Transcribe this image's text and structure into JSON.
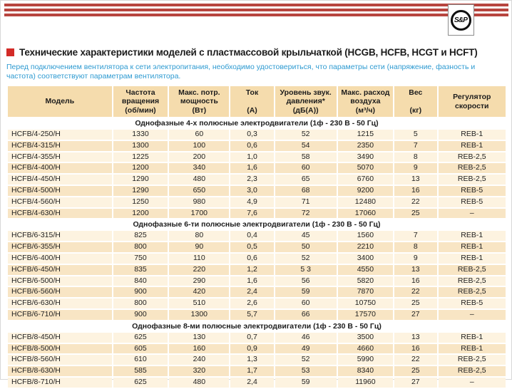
{
  "logo": {
    "text": "S&P"
  },
  "title": {
    "text": "Технические характеристики моделей с пластмассовой крыльчаткой (HCGB, HCFB, HCGT и HCFT)"
  },
  "intro": {
    "text": "Перед подключением вентилятора к сети электропитания, необходимо удостовериться, что параметры сети (напряжение, фазность и частота) соответствуют параметрам вентилятора."
  },
  "colors": {
    "stripe_red": "#b8453f",
    "bullet_red": "#d32b27",
    "intro_blue": "#2d9ad1",
    "header_bg": "#f5dcad",
    "row_light": "#fdf3e0",
    "row_dark": "#f8e5c4"
  },
  "table": {
    "columns": [
      {
        "lines": [
          "Модель"
        ]
      },
      {
        "lines": [
          "Частота",
          "вращения",
          "(об/мин)"
        ]
      },
      {
        "lines": [
          "Макс. потр.",
          "мощность",
          "(Вт)"
        ]
      },
      {
        "lines": [
          "Ток",
          "",
          "(А)"
        ]
      },
      {
        "lines": [
          "Уровень звук.",
          "давления*",
          "(дБ(А))"
        ]
      },
      {
        "lines": [
          "Макс. расход",
          "воздуха",
          "(м³/ч)"
        ]
      },
      {
        "lines": [
          "Вес",
          "",
          "(кг)"
        ]
      },
      {
        "lines": [
          "Регулятор",
          "скорости"
        ]
      }
    ],
    "sections": [
      {
        "header": "Однофазные 4-х полюсные электродвигатели (1ф - 230 В - 50 Гц)",
        "rows": [
          [
            "HCFB/4-250/H",
            "1330",
            "60",
            "0,3",
            "52",
            "1215",
            "5",
            "REB-1"
          ],
          [
            "HCFB/4-315/H",
            "1300",
            "100",
            "0,6",
            "54",
            "2350",
            "7",
            "REB-1"
          ],
          [
            "HCFB/4-355/H",
            "1225",
            "200",
            "1,0",
            "58",
            "3490",
            "8",
            "REB-2,5"
          ],
          [
            "HCFB/4-400/H",
            "1200",
            "340",
            "1,6",
            "60",
            "5070",
            "9",
            "REB-2,5"
          ],
          [
            "HCFB/4-450/H",
            "1290",
            "480",
            "2,3",
            "65",
            "6760",
            "13",
            "REB-2,5"
          ],
          [
            "HCFB/4-500/H",
            "1290",
            "650",
            "3,0",
            "68",
            "9200",
            "16",
            "REB-5"
          ],
          [
            "HCFB/4-560/H",
            "1250",
            "980",
            "4,9",
            "71",
            "12480",
            "22",
            "REB-5"
          ],
          [
            "HCFB/4-630/H",
            "1200",
            "1700",
            "7,6",
            "72",
            "17060",
            "25",
            "–"
          ]
        ]
      },
      {
        "header": "Однофазные 6-ти полюсные электродвигатели (1ф - 230 В - 50 Гц)",
        "rows": [
          [
            "HCFB/6-315/H",
            "825",
            "80",
            "0,4",
            "45",
            "1560",
            "7",
            "REB-1"
          ],
          [
            "HCFB/6-355/H",
            "800",
            "90",
            "0,5",
            "50",
            "2210",
            "8",
            "REB-1"
          ],
          [
            "HCFB/6-400/H",
            "750",
            "110",
            "0,6",
            "52",
            "3400",
            "9",
            "REB-1"
          ],
          [
            "HCFB/6-450/H",
            "835",
            "220",
            "1,2",
            "5 3",
            "4550",
            "13",
            "REB-2,5"
          ],
          [
            "HCFB/6-500/H",
            "840",
            "290",
            "1,6",
            "56",
            "5820",
            "16",
            "REB-2,5"
          ],
          [
            "HCFB/6-560/H",
            "900",
            "420",
            "2,4",
            "59",
            "7870",
            "22",
            "REB-2,5"
          ],
          [
            "HCFB/6-630/H",
            "800",
            "510",
            "2,6",
            "60",
            "10750",
            "25",
            "REB-5"
          ],
          [
            "HCFB/6-710/H",
            "900",
            "1300",
            "5,7",
            "66",
            "17570",
            "27",
            "–"
          ]
        ]
      },
      {
        "header": "Однофазные 8-ми полюсные электродвигатели (1ф - 230 В - 50 Гц)",
        "rows": [
          [
            "HCFB/8-450/H",
            "625",
            "130",
            "0,7",
            "46",
            "3500",
            "13",
            "REB-1"
          ],
          [
            "HCFB/8-500/H",
            "605",
            "160",
            "0,9",
            "49",
            "4660",
            "16",
            "REB-1"
          ],
          [
            "HCFB/8-560/H",
            "610",
            "240",
            "1,3",
            "52",
            "5990",
            "22",
            "REB-2,5"
          ],
          [
            "HCFB/8-630/H",
            "585",
            "320",
            "1,7",
            "53",
            "8340",
            "25",
            "REB-2,5"
          ],
          [
            "HCFB/8-710/H",
            "625",
            "480",
            "2,4",
            "59",
            "11960",
            "27",
            "–"
          ]
        ]
      }
    ]
  }
}
